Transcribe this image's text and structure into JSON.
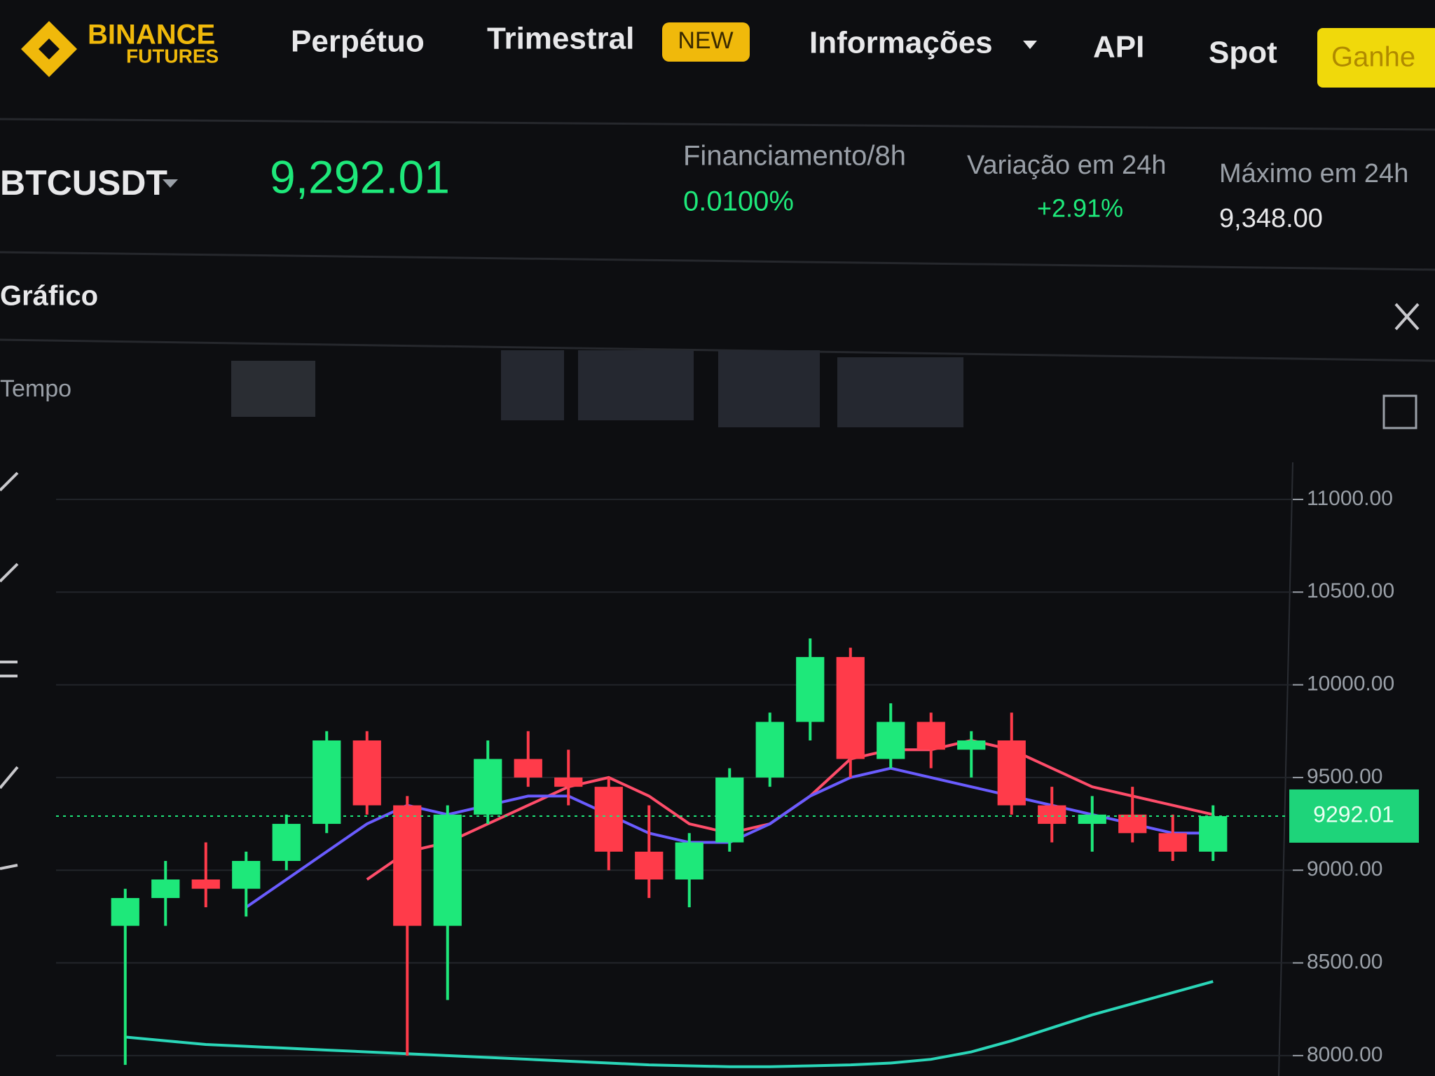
{
  "header": {
    "logo": {
      "line1": "BINANCE",
      "line2": "FUTURES"
    },
    "nav": [
      "Perpétuo",
      "Trimestral",
      "Informações",
      "API",
      "Spot"
    ],
    "badge": "NEW",
    "cta": "Ganhe"
  },
  "ticker": {
    "symbol": "BTCUSDT",
    "price": "9,292.01",
    "stats": [
      {
        "label": "Financiamento/8h",
        "value": "0.0100%"
      },
      {
        "label": "Variação em 24h",
        "value": "+2.91%"
      },
      {
        "label": "Máximo em 24h",
        "value": "9,348.00"
      }
    ]
  },
  "panel": {
    "title": "Gráfico",
    "interval_label": "Tempo"
  },
  "chart_data": {
    "type": "candlestick",
    "open": [
      8700,
      8850,
      8950,
      8900,
      9050,
      9250,
      9700,
      9350,
      8700,
      9300,
      9600,
      9500,
      9450,
      9100,
      8950,
      9150,
      9500,
      9800,
      10150,
      9600,
      9800,
      9650,
      9700,
      9350,
      9250,
      9300,
      9200,
      9100
    ],
    "high": [
      8900,
      9050,
      9150,
      9100,
      9300,
      9750,
      9750,
      9400,
      9350,
      9700,
      9750,
      9650,
      9500,
      9350,
      9200,
      9550,
      9850,
      10250,
      10200,
      9900,
      9850,
      9750,
      9850,
      9450,
      9400,
      9450,
      9300,
      9350
    ],
    "low": [
      7950,
      8700,
      8800,
      8750,
      9000,
      9200,
      9300,
      8000,
      8300,
      9250,
      9450,
      9350,
      9000,
      8850,
      8800,
      9100,
      9450,
      9700,
      9500,
      9550,
      9550,
      9500,
      9300,
      9150,
      9100,
      9150,
      9050,
      9050
    ],
    "close": [
      8850,
      8950,
      8900,
      9050,
      9250,
      9700,
      9350,
      8700,
      9300,
      9600,
      9500,
      9450,
      9100,
      8950,
      9150,
      9500,
      9800,
      10150,
      9600,
      9800,
      9650,
      9700,
      9350,
      9250,
      9300,
      9200,
      9100,
      9292.01
    ],
    "up_color": "#1ee87a",
    "down_color": "#ff3b4a",
    "series": [
      {
        "color": "#ff4d6a",
        "values": [
          null,
          null,
          null,
          null,
          null,
          null,
          8950,
          9100,
          9150,
          9250,
          9350,
          9450,
          9500,
          9400,
          9250,
          9200,
          9250,
          9400,
          9600,
          9650,
          9650,
          9700,
          9650,
          9550,
          9450,
          9400,
          9350,
          9300
        ]
      },
      {
        "color": "#6a5cff",
        "values": [
          null,
          null,
          null,
          8800,
          8950,
          9100,
          9250,
          9350,
          9300,
          9350,
          9400,
          9400,
          9300,
          9200,
          9150,
          9150,
          9250,
          9400,
          9500,
          9550,
          9500,
          9450,
          9400,
          9350,
          9300,
          9250,
          9200,
          9200
        ]
      },
      {
        "color": "#2ad6b8",
        "values": [
          8100,
          8080,
          8060,
          8050,
          8040,
          8030,
          8020,
          8010,
          8000,
          7990,
          7980,
          7970,
          7960,
          7950,
          7945,
          7940,
          7940,
          7945,
          7950,
          7960,
          7980,
          8020,
          8080,
          8150,
          8220,
          8280,
          8340,
          8400
        ]
      }
    ],
    "last_price": 9292.01,
    "ylim": [
      7890,
      11200
    ],
    "yticks": [
      {
        "value": 8000,
        "label": "8000.00"
      },
      {
        "value": 8500,
        "label": "8500.00"
      },
      {
        "value": 9000,
        "label": "9000.00"
      },
      {
        "value": 9500,
        "label": "9500.00"
      },
      {
        "value": 10000,
        "label": "10000.00"
      },
      {
        "value": 10500,
        "label": "10500.00"
      },
      {
        "value": 11000,
        "label": "11000.00"
      }
    ],
    "grid": true
  }
}
